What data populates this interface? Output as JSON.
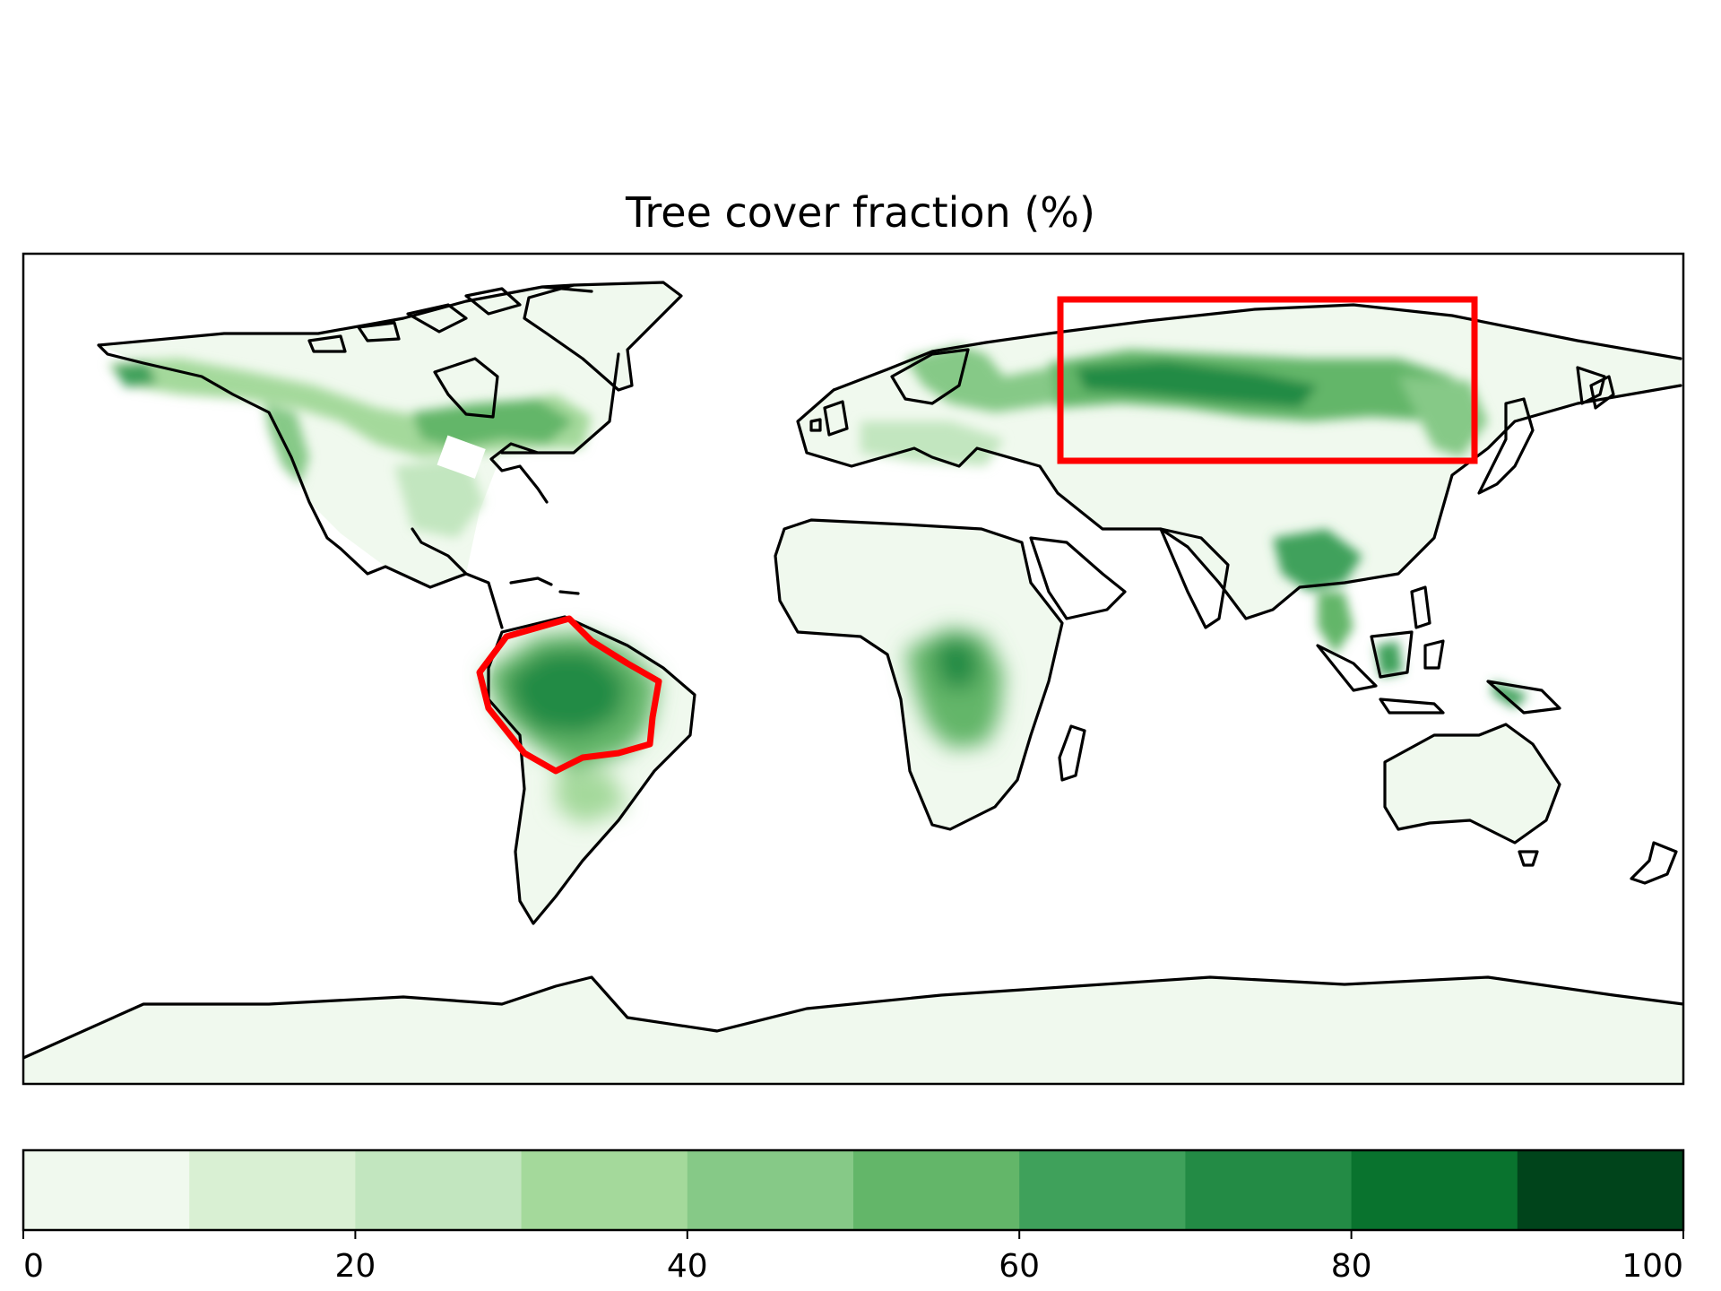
{
  "figure": {
    "title": "Tree cover fraction (%)"
  },
  "chart_data": {
    "type": "heatmap",
    "title": "Tree cover fraction (%)",
    "projection": "plate-carree",
    "extent": {
      "lon": [
        -180,
        180
      ],
      "lat": [
        -90,
        90
      ]
    },
    "colorbar": {
      "orientation": "horizontal",
      "placement": "bottom",
      "range": [
        0,
        100
      ],
      "levels": [
        0,
        10,
        20,
        30,
        40,
        50,
        60,
        70,
        80,
        90,
        100
      ],
      "ticks": [
        0,
        20,
        40,
        60,
        80,
        100
      ],
      "tick_labels": [
        "0",
        "20",
        "40",
        "60",
        "80",
        "100"
      ],
      "colors": [
        "#f0f9ee",
        "#d9f0d3",
        "#c2e6bf",
        "#a4d99b",
        "#86c987",
        "#63b669",
        "#3fa15b",
        "#238b45",
        "#09732e",
        "#00441b"
      ]
    },
    "regions": [
      {
        "lon": -68,
        "lat": 59,
        "value": 55
      },
      {
        "lon": -110,
        "lat": 60,
        "value": 40
      },
      {
        "lon": -160,
        "lat": 66,
        "value": 55
      },
      {
        "lon": -120,
        "lat": 48,
        "value": 40
      },
      {
        "lon": -80,
        "lat": 38,
        "value": 30
      },
      {
        "lon": -62,
        "lat": -6,
        "value": 80
      },
      {
        "lon": 20,
        "lat": -5,
        "value": 75
      },
      {
        "lon": 20,
        "lat": -12,
        "value": 60
      },
      {
        "lon": 30,
        "lat": 62,
        "value": 55
      },
      {
        "lon": 90,
        "lat": 62,
        "value": 75
      },
      {
        "lon": 130,
        "lat": 60,
        "value": 65
      },
      {
        "lon": 105,
        "lat": 25,
        "value": 60
      },
      {
        "lon": 112,
        "lat": 0,
        "value": 60
      },
      {
        "lon": 145,
        "lat": -6,
        "value": 60
      }
    ],
    "annotations": [
      {
        "shape": "rectangle",
        "color": "#ff0000",
        "lon": [
          60,
          140
        ],
        "lat": [
          45,
          77
        ]
      },
      {
        "shape": "outline",
        "color": "#ff0000",
        "region": "Amazon basin"
      }
    ]
  }
}
